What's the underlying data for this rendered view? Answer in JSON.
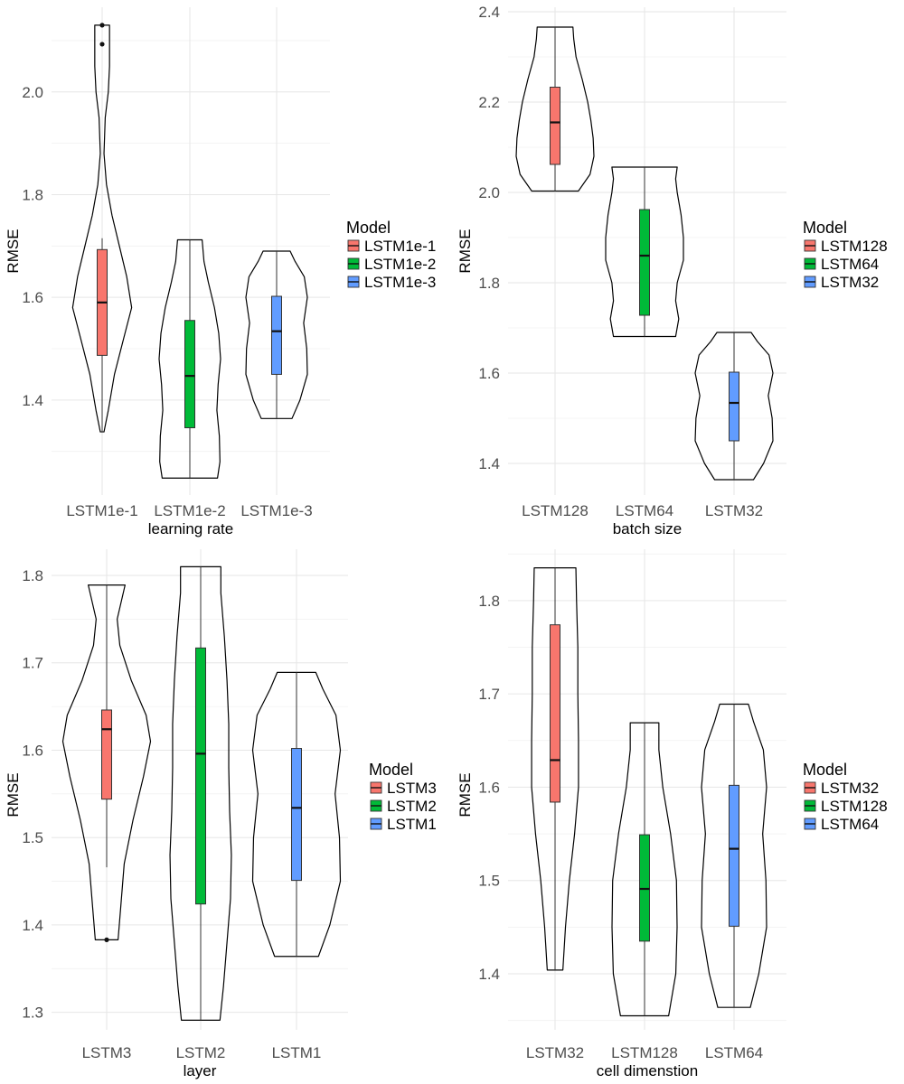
{
  "chart_data": [
    {
      "type": "violin",
      "xlabel": "learning rate",
      "ylabel": "RMSE",
      "ylim": [
        1.215,
        2.165
      ],
      "yticks": [
        1.4,
        1.6,
        1.8,
        2.0
      ],
      "yticks_minor": [
        1.3,
        1.5,
        1.7,
        1.9,
        2.1
      ],
      "grid": true,
      "legend": {
        "title": "Model",
        "position": "right",
        "entries": [
          "LSTM1e-1",
          "LSTM1e-2",
          "LSTM1e-3"
        ]
      },
      "categories": [
        "LSTM1e-1",
        "LSTM1e-2",
        "LSTM1e-3"
      ],
      "colors": [
        "#F8766D",
        "#00BA38",
        "#619CFF"
      ],
      "series": [
        {
          "min": 1.338,
          "max": 2.13,
          "q1": 1.487,
          "median": 1.59,
          "q3": 1.693,
          "whisker_low": 1.338,
          "whisker_high": 1.715,
          "outliers": [
            2.093,
            2.13
          ],
          "density": [
            [
              1.338,
              0.03
            ],
            [
              1.38,
              0.1
            ],
            [
              1.45,
              0.2
            ],
            [
              1.52,
              0.35
            ],
            [
              1.58,
              0.48
            ],
            [
              1.64,
              0.4
            ],
            [
              1.7,
              0.28
            ],
            [
              1.76,
              0.16
            ],
            [
              1.82,
              0.07
            ],
            [
              1.88,
              0.03
            ],
            [
              1.95,
              0.05
            ],
            [
              2.0,
              0.1
            ],
            [
              2.05,
              0.12
            ],
            [
              2.1,
              0.12
            ],
            [
              2.13,
              0.12
            ]
          ]
        },
        {
          "min": 1.248,
          "max": 1.712,
          "q1": 1.346,
          "median": 1.447,
          "q3": 1.555,
          "whisker_low": 1.248,
          "whisker_high": 1.712,
          "outliers": [],
          "density": [
            [
              1.248,
              0.45
            ],
            [
              1.28,
              0.49
            ],
            [
              1.33,
              0.48
            ],
            [
              1.38,
              0.44
            ],
            [
              1.43,
              0.46
            ],
            [
              1.48,
              0.5
            ],
            [
              1.53,
              0.47
            ],
            [
              1.58,
              0.4
            ],
            [
              1.63,
              0.3
            ],
            [
              1.67,
              0.23
            ],
            [
              1.712,
              0.2
            ]
          ]
        },
        {
          "min": 1.364,
          "max": 1.69,
          "q1": 1.45,
          "median": 1.534,
          "q3": 1.602,
          "whisker_low": 1.364,
          "whisker_high": 1.69,
          "outliers": [],
          "density": [
            [
              1.364,
              0.25
            ],
            [
              1.4,
              0.38
            ],
            [
              1.45,
              0.5
            ],
            [
              1.5,
              0.49
            ],
            [
              1.55,
              0.44
            ],
            [
              1.6,
              0.5
            ],
            [
              1.64,
              0.45
            ],
            [
              1.67,
              0.3
            ],
            [
              1.69,
              0.22
            ]
          ]
        }
      ]
    },
    {
      "type": "violin",
      "xlabel": "batch size",
      "ylabel": "RMSE",
      "ylim": [
        1.33,
        2.41
      ],
      "yticks": [
        1.4,
        1.6,
        1.8,
        2.0,
        2.2,
        2.4
      ],
      "yticks_minor": [
        1.5,
        1.7,
        1.9,
        2.1,
        2.3
      ],
      "grid": true,
      "legend": {
        "title": "Model",
        "position": "right",
        "entries": [
          "LSTM128",
          "LSTM64",
          "LSTM32"
        ]
      },
      "categories": [
        "LSTM128",
        "LSTM64",
        "LSTM32"
      ],
      "colors": [
        "#F8766D",
        "#00BA38",
        "#619CFF"
      ],
      "series": [
        {
          "min": 2.003,
          "max": 2.366,
          "q1": 2.062,
          "median": 2.155,
          "q3": 2.233,
          "whisker_low": 2.003,
          "whisker_high": 2.366,
          "outliers": [],
          "density": [
            [
              2.003,
              0.3
            ],
            [
              2.04,
              0.45
            ],
            [
              2.08,
              0.5
            ],
            [
              2.12,
              0.49
            ],
            [
              2.16,
              0.46
            ],
            [
              2.2,
              0.42
            ],
            [
              2.25,
              0.35
            ],
            [
              2.3,
              0.27
            ],
            [
              2.34,
              0.24
            ],
            [
              2.366,
              0.23
            ]
          ]
        },
        {
          "min": 1.681,
          "max": 2.056,
          "q1": 1.728,
          "median": 1.86,
          "q3": 1.962,
          "whisker_low": 1.681,
          "whisker_high": 2.056,
          "outliers": [],
          "density": [
            [
              1.681,
              0.4
            ],
            [
              1.72,
              0.44
            ],
            [
              1.76,
              0.4
            ],
            [
              1.8,
              0.42
            ],
            [
              1.85,
              0.5
            ],
            [
              1.9,
              0.5
            ],
            [
              1.95,
              0.47
            ],
            [
              2.0,
              0.42
            ],
            [
              2.03,
              0.4
            ],
            [
              2.056,
              0.42
            ]
          ]
        },
        {
          "min": 1.364,
          "max": 1.69,
          "q1": 1.45,
          "median": 1.534,
          "q3": 1.602,
          "whisker_low": 1.364,
          "whisker_high": 1.69,
          "outliers": [],
          "density": [
            [
              1.364,
              0.25
            ],
            [
              1.4,
              0.38
            ],
            [
              1.45,
              0.5
            ],
            [
              1.5,
              0.49
            ],
            [
              1.55,
              0.44
            ],
            [
              1.6,
              0.5
            ],
            [
              1.64,
              0.45
            ],
            [
              1.67,
              0.3
            ],
            [
              1.69,
              0.22
            ]
          ]
        }
      ]
    },
    {
      "type": "violin",
      "xlabel": "layer",
      "ylabel": "RMSE",
      "ylim": [
        1.28,
        1.83
      ],
      "yticks": [
        1.3,
        1.4,
        1.5,
        1.6,
        1.7,
        1.8
      ],
      "yticks_minor": [
        1.35,
        1.45,
        1.55,
        1.65,
        1.75
      ],
      "grid": true,
      "legend": {
        "title": "Model",
        "position": "right",
        "entries": [
          "LSTM3",
          "LSTM2",
          "LSTM1"
        ]
      },
      "categories": [
        "LSTM3",
        "LSTM2",
        "LSTM1"
      ],
      "colors": [
        "#F8766D",
        "#00BA38",
        "#619CFF"
      ],
      "series": [
        {
          "min": 1.383,
          "max": 1.789,
          "q1": 1.544,
          "median": 1.624,
          "q3": 1.646,
          "whisker_low": 1.466,
          "whisker_high": 1.789,
          "outliers": [
            1.383
          ],
          "density": [
            [
              1.383,
              0.13
            ],
            [
              1.42,
              0.16
            ],
            [
              1.47,
              0.2
            ],
            [
              1.52,
              0.3
            ],
            [
              1.57,
              0.42
            ],
            [
              1.61,
              0.5
            ],
            [
              1.64,
              0.45
            ],
            [
              1.68,
              0.28
            ],
            [
              1.72,
              0.15
            ],
            [
              1.75,
              0.12
            ],
            [
              1.789,
              0.21
            ]
          ]
        },
        {
          "min": 1.291,
          "max": 1.81,
          "q1": 1.424,
          "median": 1.596,
          "q3": 1.717,
          "whisker_low": 1.291,
          "whisker_high": 1.81,
          "outliers": [],
          "density": [
            [
              1.291,
              0.22
            ],
            [
              1.33,
              0.26
            ],
            [
              1.38,
              0.3
            ],
            [
              1.43,
              0.34
            ],
            [
              1.48,
              0.35
            ],
            [
              1.53,
              0.33
            ],
            [
              1.58,
              0.32
            ],
            [
              1.63,
              0.32
            ],
            [
              1.68,
              0.3
            ],
            [
              1.73,
              0.27
            ],
            [
              1.78,
              0.23
            ],
            [
              1.81,
              0.23
            ]
          ]
        },
        {
          "min": 1.364,
          "max": 1.689,
          "q1": 1.451,
          "median": 1.534,
          "q3": 1.602,
          "whisker_low": 1.364,
          "whisker_high": 1.689,
          "outliers": [],
          "density": [
            [
              1.364,
              0.25
            ],
            [
              1.4,
              0.38
            ],
            [
              1.45,
              0.5
            ],
            [
              1.5,
              0.49
            ],
            [
              1.55,
              0.44
            ],
            [
              1.6,
              0.5
            ],
            [
              1.64,
              0.45
            ],
            [
              1.67,
              0.3
            ],
            [
              1.689,
              0.22
            ]
          ]
        }
      ]
    },
    {
      "type": "violin",
      "xlabel": "cell dimenstion",
      "ylabel": "RMSE",
      "ylim": [
        1.34,
        1.855
      ],
      "yticks": [
        1.4,
        1.5,
        1.6,
        1.7,
        1.8
      ],
      "yticks_minor": [
        1.35,
        1.45,
        1.55,
        1.65,
        1.75,
        1.85
      ],
      "grid": true,
      "legend": {
        "title": "Model",
        "position": "right",
        "entries": [
          "LSTM32",
          "LSTM128",
          "LSTM64"
        ]
      },
      "categories": [
        "LSTM32",
        "LSTM128",
        "LSTM64"
      ],
      "colors": [
        "#F8766D",
        "#00BA38",
        "#619CFF"
      ],
      "series": [
        {
          "min": 1.404,
          "max": 1.835,
          "q1": 1.584,
          "median": 1.629,
          "q3": 1.774,
          "whisker_low": 1.404,
          "whisker_high": 1.835,
          "outliers": [],
          "density": [
            [
              1.404,
              0.12
            ],
            [
              1.45,
              0.16
            ],
            [
              1.5,
              0.22
            ],
            [
              1.55,
              0.3
            ],
            [
              1.6,
              0.36
            ],
            [
              1.65,
              0.36
            ],
            [
              1.7,
              0.35
            ],
            [
              1.75,
              0.35
            ],
            [
              1.8,
              0.33
            ],
            [
              1.835,
              0.32
            ]
          ]
        },
        {
          "min": 1.355,
          "max": 1.669,
          "q1": 1.435,
          "median": 1.491,
          "q3": 1.549,
          "whisker_low": 1.355,
          "whisker_high": 1.669,
          "outliers": [],
          "density": [
            [
              1.355,
              0.37
            ],
            [
              1.4,
              0.48
            ],
            [
              1.45,
              0.5
            ],
            [
              1.5,
              0.49
            ],
            [
              1.55,
              0.4
            ],
            [
              1.6,
              0.28
            ],
            [
              1.64,
              0.22
            ],
            [
              1.669,
              0.22
            ]
          ]
        },
        {
          "min": 1.364,
          "max": 1.689,
          "q1": 1.451,
          "median": 1.534,
          "q3": 1.602,
          "whisker_low": 1.364,
          "whisker_high": 1.689,
          "outliers": [],
          "density": [
            [
              1.364,
              0.25
            ],
            [
              1.4,
              0.38
            ],
            [
              1.45,
              0.5
            ],
            [
              1.5,
              0.49
            ],
            [
              1.55,
              0.44
            ],
            [
              1.6,
              0.5
            ],
            [
              1.64,
              0.45
            ],
            [
              1.67,
              0.3
            ],
            [
              1.689,
              0.22
            ]
          ]
        }
      ]
    }
  ]
}
